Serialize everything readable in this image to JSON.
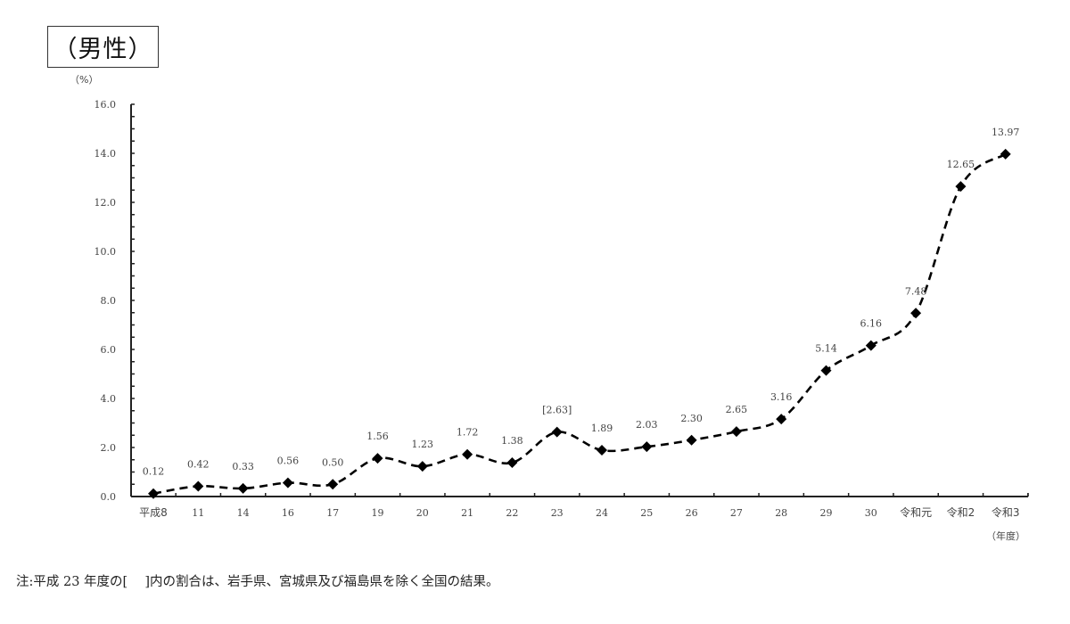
{
  "header": {
    "title": "（男性）",
    "unit": "（%）"
  },
  "footer": {
    "note": "注:平成 23 年度の[　 ]内の割合は、岩手県、宮城県及び福島県を除く全国の結果。"
  },
  "chart_data": {
    "type": "line",
    "title": "（男性）",
    "xlabel": "（年度）",
    "ylabel": "（%）",
    "ylim": [
      0,
      16
    ],
    "yticks": [
      "0.0",
      "2.0",
      "4.0",
      "6.0",
      "8.0",
      "10.0",
      "12.0",
      "14.0",
      "16.0"
    ],
    "y_minor_step": 0.5,
    "grid": false,
    "line_style": "dashed",
    "marker": "diamond",
    "color": "#000000",
    "categories": [
      "平成8",
      "11",
      "14",
      "16",
      "17",
      "19",
      "20",
      "21",
      "22",
      "23",
      "24",
      "25",
      "26",
      "27",
      "28",
      "29",
      "30",
      "令和元",
      "令和2",
      "令和3"
    ],
    "series": [
      {
        "name": "男性",
        "values": [
          0.12,
          0.42,
          0.33,
          0.56,
          0.5,
          1.56,
          1.23,
          1.72,
          1.38,
          2.63,
          1.89,
          2.03,
          2.3,
          2.65,
          3.16,
          5.14,
          6.16,
          7.48,
          12.65,
          13.97
        ],
        "labels": [
          "0.12",
          "0.42",
          "0.33",
          "0.56",
          "0.50",
          "1.56",
          "1.23",
          "1.72",
          "1.38",
          "[2.63]",
          "1.89",
          "2.03",
          "2.30",
          "2.65",
          "3.16",
          "5.14",
          "6.16",
          "7.48",
          "12.65",
          "13.97"
        ]
      }
    ],
    "annotations": [
      "平成23年度の値は[ ]で表示（岩手県、宮城県及び福島県を除く）"
    ]
  }
}
